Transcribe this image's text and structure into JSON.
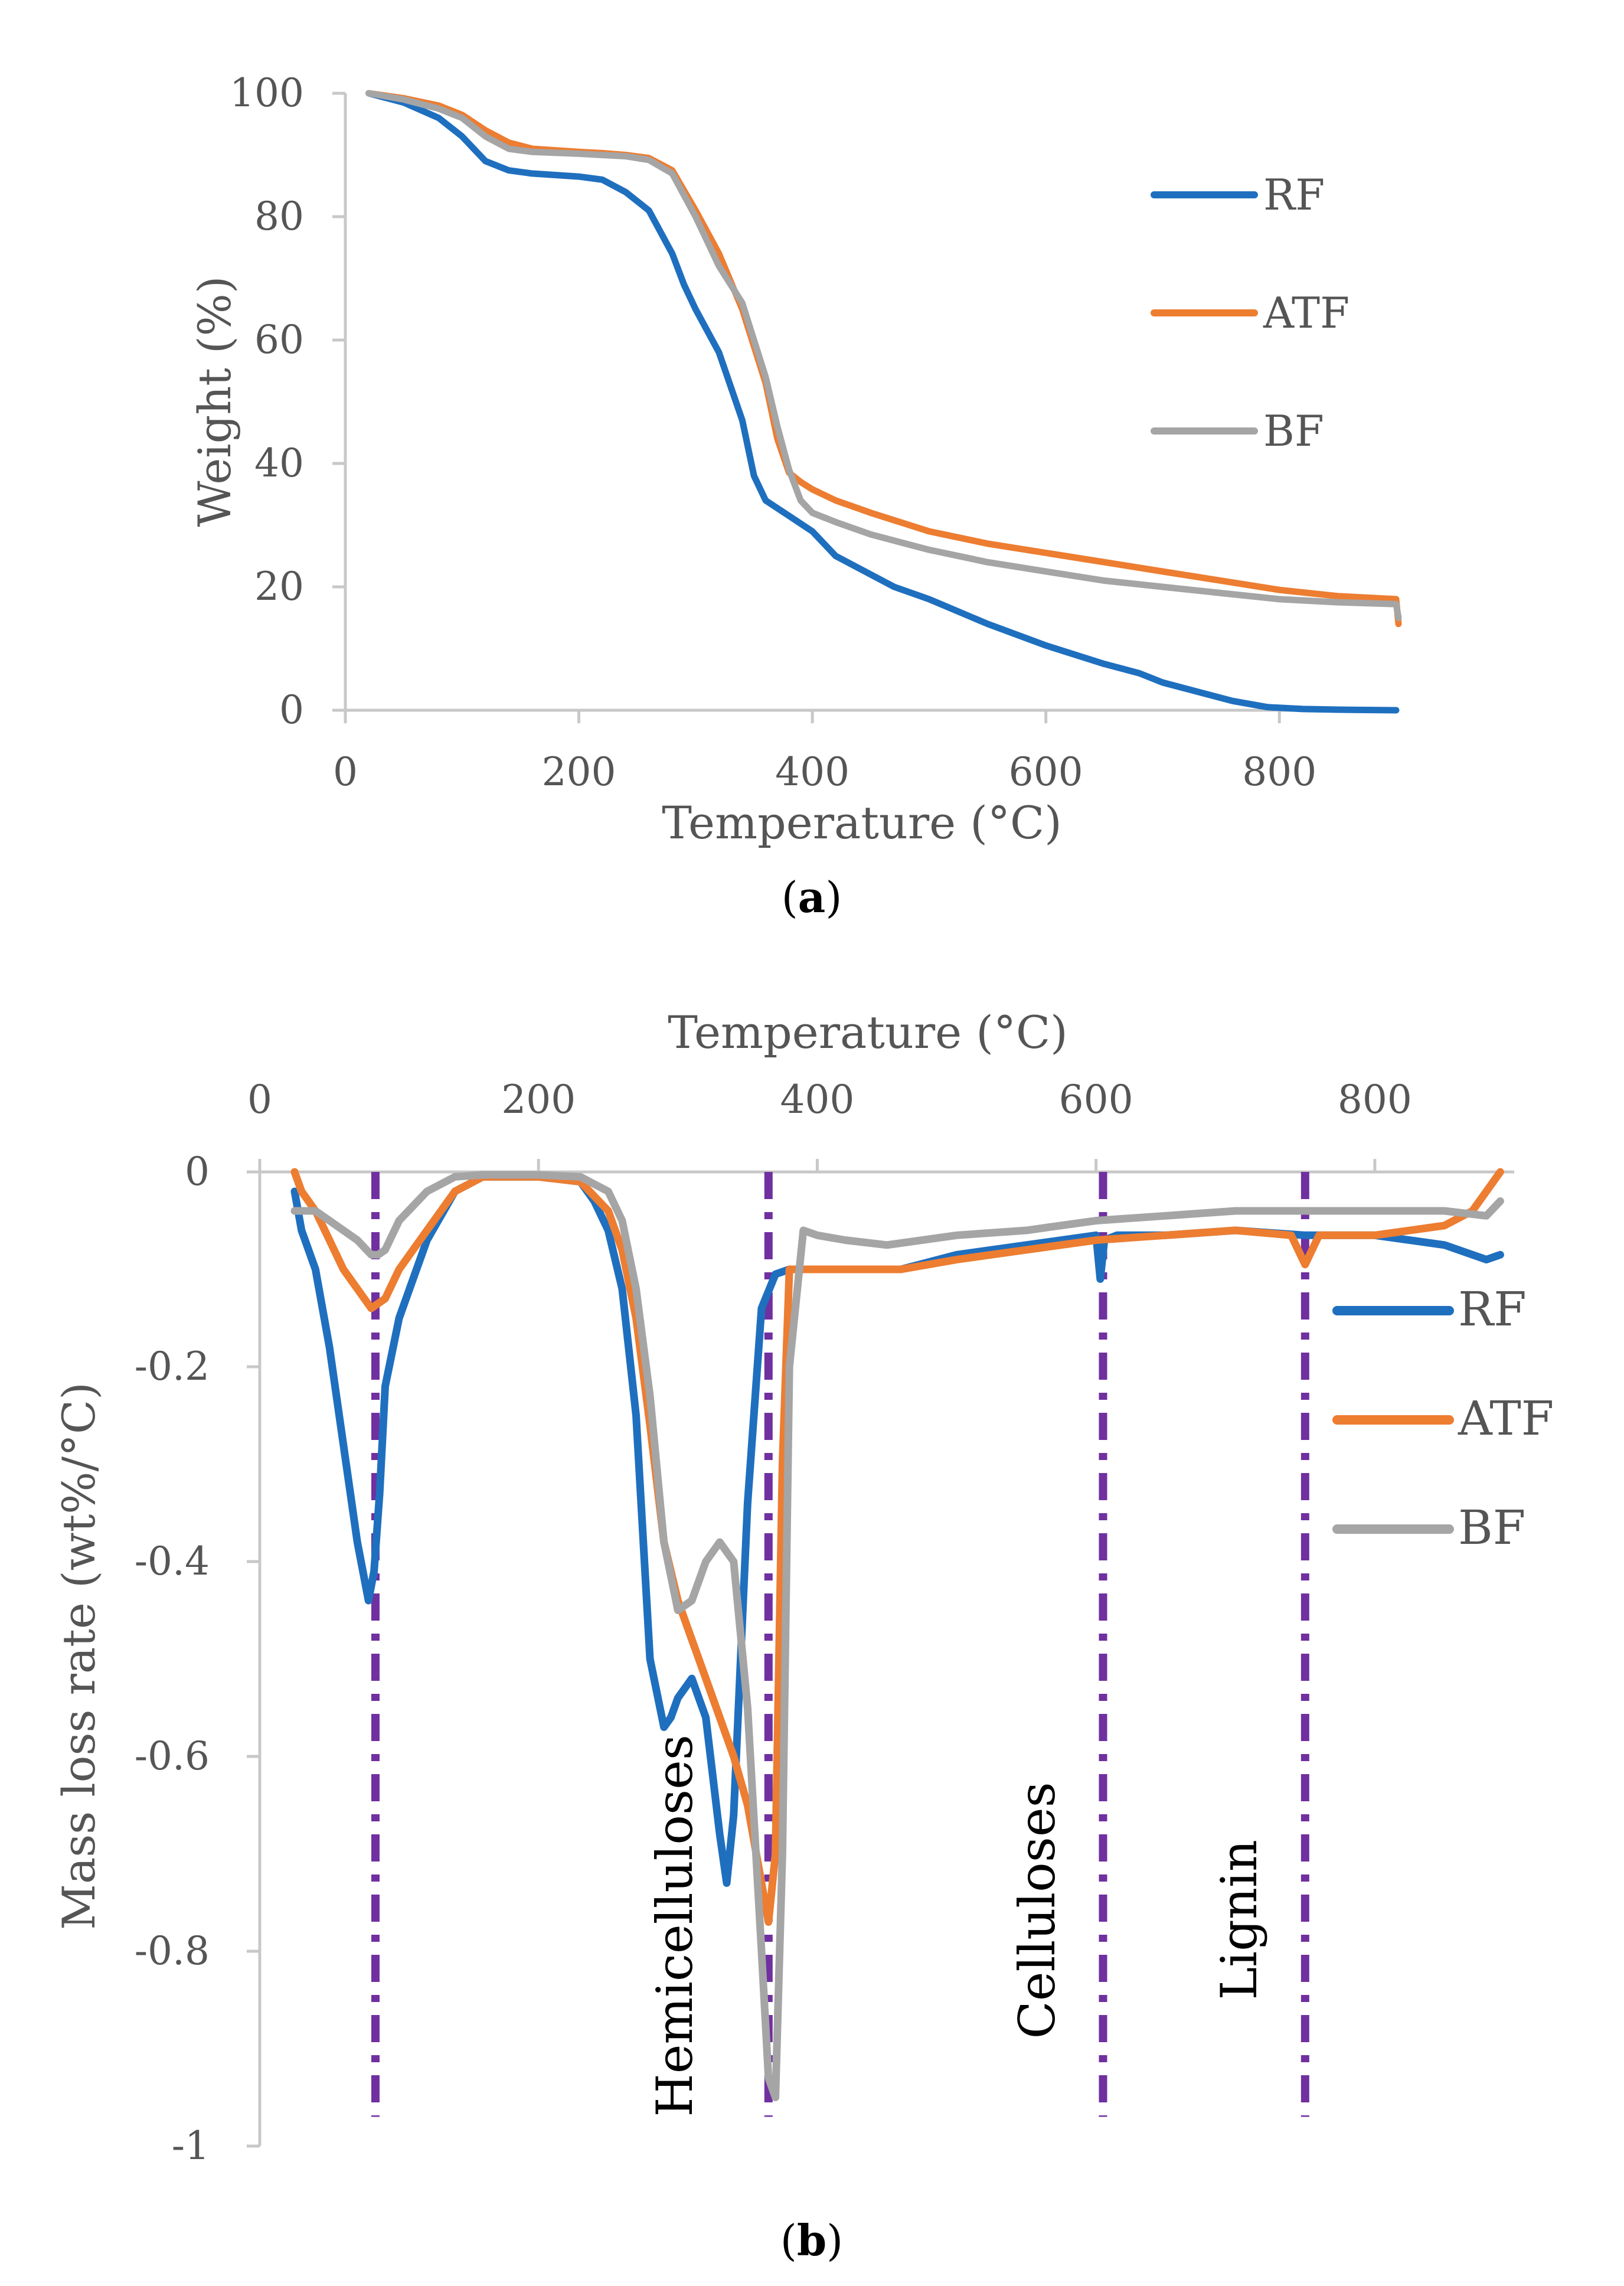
{
  "chart_data": [
    {
      "type": "line",
      "caption": "(a)",
      "caption_letter": "a",
      "xlabel": "Temperature (°C)",
      "ylabel": "Weight (%)",
      "xlim": [
        0,
        900
      ],
      "ylim": [
        0,
        100
      ],
      "xticks": [
        0,
        200,
        400,
        600,
        800
      ],
      "yticks": [
        0,
        20,
        40,
        60,
        80,
        100
      ],
      "legend_position": "right",
      "series": [
        {
          "name": "RF",
          "color": "#1f6fbf",
          "x": [
            20,
            50,
            80,
            100,
            120,
            140,
            160,
            200,
            220,
            240,
            260,
            280,
            290,
            300,
            320,
            340,
            350,
            360,
            380,
            400,
            420,
            440,
            470,
            500,
            550,
            600,
            650,
            680,
            700,
            730,
            760,
            790,
            820,
            850,
            900
          ],
          "y": [
            100,
            98.5,
            96,
            93,
            89,
            87.5,
            87,
            86.5,
            86,
            84,
            81,
            74,
            69,
            65,
            58,
            47,
            38,
            34,
            31.5,
            29,
            25,
            23,
            20,
            18,
            14,
            10.5,
            7.5,
            6,
            4.5,
            3,
            1.5,
            0.5,
            0.2,
            0.1,
            0
          ]
        },
        {
          "name": "ATF",
          "color": "#ed7d31",
          "x": [
            20,
            50,
            80,
            100,
            120,
            140,
            160,
            200,
            220,
            240,
            260,
            280,
            300,
            320,
            340,
            360,
            370,
            380,
            390,
            400,
            420,
            450,
            500,
            550,
            600,
            650,
            700,
            750,
            800,
            850,
            900,
            902
          ],
          "y": [
            100,
            99.2,
            98,
            96.5,
            94,
            92,
            91,
            90.5,
            90.3,
            90,
            89.5,
            87.5,
            81,
            74,
            65,
            53,
            44,
            38.5,
            37,
            35.8,
            34,
            32,
            29,
            27,
            25.5,
            24,
            22.5,
            21,
            19.5,
            18.5,
            18,
            14
          ]
        },
        {
          "name": "BF",
          "color": "#a5a5a5",
          "x": [
            20,
            50,
            80,
            100,
            120,
            140,
            160,
            200,
            220,
            240,
            260,
            280,
            300,
            320,
            340,
            360,
            370,
            380,
            390,
            400,
            420,
            450,
            500,
            550,
            600,
            650,
            700,
            750,
            800,
            850,
            900,
            902
          ],
          "y": [
            100,
            99,
            97.5,
            96,
            93,
            91,
            90.5,
            90.2,
            90,
            89.8,
            89.2,
            87,
            80,
            72,
            66,
            54,
            46,
            39,
            34,
            32,
            30.5,
            28.5,
            26,
            24,
            22.5,
            21,
            20,
            19,
            18,
            17.5,
            17.2,
            15
          ]
        }
      ]
    },
    {
      "type": "line",
      "caption": "(b)",
      "caption_letter": "b",
      "xlabel": "Temperature (°C)",
      "ylabel": "Mass loss rate (wt%/°C)",
      "xaxis_position": "top",
      "xlim": [
        0,
        900
      ],
      "ylim": [
        -1,
        0
      ],
      "xticks": [
        0,
        200,
        400,
        600,
        800
      ],
      "yticks": [
        0,
        -0.2,
        -0.4,
        -0.6,
        -0.8,
        -1
      ],
      "ytick_labels": [
        "0",
        "-0.2",
        "-0.4",
        "-0.6",
        "-0.8",
        "-1"
      ],
      "legend_position": "right",
      "vlines": [
        83,
        365,
        605,
        750
      ],
      "annotations": [
        {
          "text": "Hemicelluloses",
          "x": 310,
          "y": -0.97
        },
        {
          "text": "Celluloses",
          "x": 570,
          "y": -0.89
        },
        {
          "text": "Lignin",
          "x": 715,
          "y": -0.85
        }
      ],
      "series": [
        {
          "name": "RF",
          "color": "#1f6fbf",
          "x": [
            25,
            30,
            40,
            50,
            60,
            70,
            78,
            82,
            86,
            90,
            100,
            120,
            140,
            160,
            200,
            230,
            240,
            250,
            260,
            270,
            280,
            290,
            295,
            300,
            310,
            320,
            330,
            335,
            340,
            350,
            360,
            370,
            380,
            400,
            430,
            460,
            500,
            550,
            600,
            603,
            606,
            615,
            650,
            700,
            750,
            800,
            850,
            870,
            880,
            890
          ],
          "y": [
            -0.02,
            -0.06,
            -0.1,
            -0.18,
            -0.28,
            -0.38,
            -0.44,
            -0.41,
            -0.33,
            -0.22,
            -0.15,
            -0.07,
            -0.02,
            -0.005,
            -0.005,
            -0.01,
            -0.03,
            -0.06,
            -0.12,
            -0.25,
            -0.5,
            -0.57,
            -0.56,
            -0.54,
            -0.52,
            -0.56,
            -0.68,
            -0.73,
            -0.66,
            -0.34,
            -0.14,
            -0.105,
            -0.1,
            -0.1,
            -0.1,
            -0.1,
            -0.085,
            -0.075,
            -0.065,
            -0.11,
            -0.07,
            -0.065,
            -0.065,
            -0.06,
            -0.065,
            -0.065,
            -0.075,
            -0.085,
            -0.09,
            -0.085
          ]
        },
        {
          "name": "ATF",
          "color": "#ed7d31",
          "x": [
            25,
            30,
            40,
            50,
            60,
            70,
            80,
            85,
            90,
            100,
            120,
            140,
            160,
            200,
            230,
            250,
            260,
            270,
            280,
            290,
            300,
            310,
            320,
            330,
            340,
            350,
            360,
            365,
            370,
            375,
            380,
            390,
            420,
            460,
            500,
            550,
            600,
            650,
            700,
            740,
            750,
            760,
            800,
            850,
            870,
            880,
            890
          ],
          "y": [
            0,
            -0.02,
            -0.04,
            -0.07,
            -0.1,
            -0.12,
            -0.14,
            -0.135,
            -0.13,
            -0.1,
            -0.06,
            -0.02,
            -0.005,
            -0.005,
            -0.01,
            -0.04,
            -0.08,
            -0.15,
            -0.26,
            -0.38,
            -0.44,
            -0.48,
            -0.52,
            -0.56,
            -0.6,
            -0.65,
            -0.73,
            -0.77,
            -0.7,
            -0.3,
            -0.1,
            -0.1,
            -0.1,
            -0.1,
            -0.09,
            -0.08,
            -0.07,
            -0.065,
            -0.06,
            -0.065,
            -0.095,
            -0.065,
            -0.065,
            -0.055,
            -0.04,
            -0.02,
            0
          ]
        },
        {
          "name": "BF",
          "color": "#a5a5a5",
          "x": [
            25,
            40,
            50,
            60,
            70,
            80,
            85,
            90,
            100,
            120,
            140,
            160,
            200,
            230,
            250,
            260,
            270,
            280,
            290,
            300,
            310,
            320,
            330,
            340,
            350,
            360,
            365,
            370,
            375,
            380,
            390,
            400,
            420,
            450,
            500,
            550,
            600,
            650,
            700,
            750,
            800,
            850,
            880,
            890
          ],
          "y": [
            -0.04,
            -0.04,
            -0.05,
            -0.06,
            -0.07,
            -0.085,
            -0.085,
            -0.08,
            -0.05,
            -0.02,
            -0.005,
            -0.003,
            -0.003,
            -0.005,
            -0.02,
            -0.05,
            -0.12,
            -0.23,
            -0.38,
            -0.45,
            -0.44,
            -0.4,
            -0.38,
            -0.4,
            -0.55,
            -0.8,
            -0.93,
            -0.95,
            -0.7,
            -0.2,
            -0.06,
            -0.065,
            -0.07,
            -0.075,
            -0.065,
            -0.06,
            -0.05,
            -0.045,
            -0.04,
            -0.04,
            -0.04,
            -0.04,
            -0.045,
            -0.03
          ]
        }
      ]
    }
  ]
}
